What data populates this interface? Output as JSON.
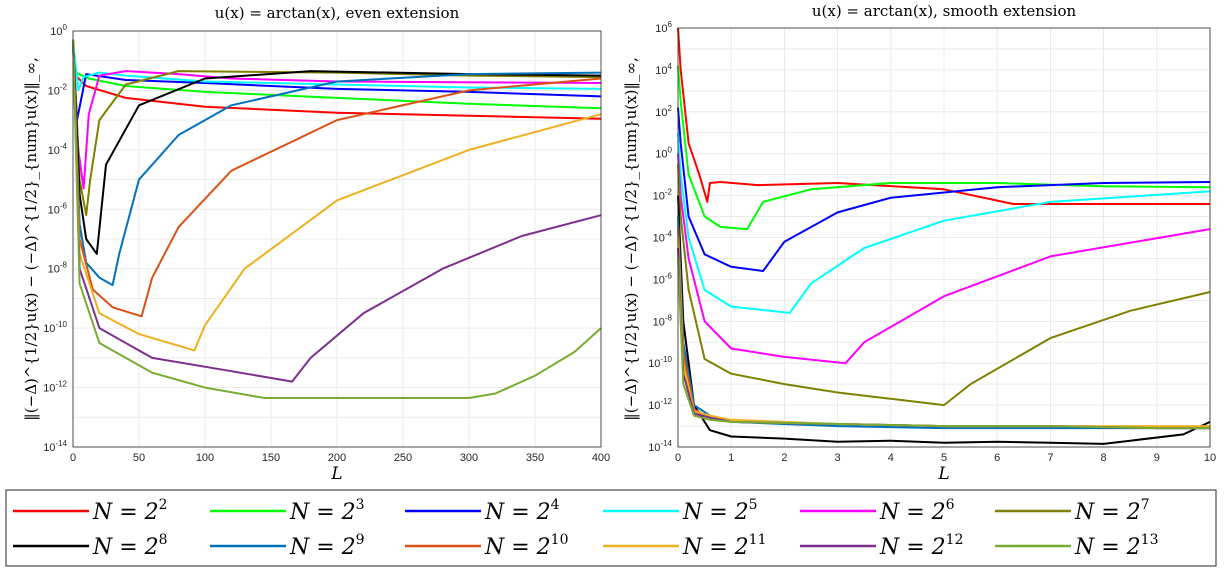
{
  "legend": {
    "entries": [
      {
        "label": "N = 2",
        "exp": "2",
        "color": "#ff0000"
      },
      {
        "label": "N = 2",
        "exp": "3",
        "color": "#00ff00"
      },
      {
        "label": "N = 2",
        "exp": "4",
        "color": "#0000ff"
      },
      {
        "label": "N = 2",
        "exp": "5",
        "color": "#00ffff"
      },
      {
        "label": "N = 2",
        "exp": "6",
        "color": "#ff00ff"
      },
      {
        "label": "N = 2",
        "exp": "7",
        "color": "#808000"
      },
      {
        "label": "N = 2",
        "exp": "8",
        "color": "#000000"
      },
      {
        "label": "N = 2",
        "exp": "9",
        "color": "#0072bd"
      },
      {
        "label": "N = 2",
        "exp": "10",
        "color": "#d95319"
      },
      {
        "label": "N = 2",
        "exp": "11",
        "color": "#edb120"
      },
      {
        "label": "N = 2",
        "exp": "12",
        "color": "#7e2f8e"
      },
      {
        "label": "N = 2",
        "exp": "13",
        "color": "#77ac30"
      }
    ]
  },
  "chart_data": [
    {
      "type": "line",
      "title": "u(x) = arctan(x), even extension",
      "xlabel": "L",
      "ylabel": "‖(−Δ)^{1/2}u(x) − (−Δ)^{1/2}_{num}u(x)‖_∞,",
      "xlim": [
        0,
        400
      ],
      "ylim_log10": [
        -14,
        0
      ],
      "yscale": "log",
      "grid": true,
      "xticks": [
        "0",
        "50",
        "100",
        "150",
        "200",
        "250",
        "300",
        "350",
        "400"
      ],
      "yticks": [
        "10^-14",
        "10^-12",
        "10^-10",
        "10^-8",
        "10^-6",
        "10^-4",
        "10^-2",
        "10^0"
      ],
      "series": [
        {
          "name": "N = 2^2",
          "x": [
            0,
            2,
            10,
            40,
            100,
            200,
            300,
            400
          ],
          "log10y": [
            -0.3,
            -1.5,
            -1.85,
            -2.25,
            -2.55,
            -2.75,
            -2.85,
            -2.95
          ]
        },
        {
          "name": "N = 2^3",
          "x": [
            0,
            2,
            12,
            40,
            100,
            200,
            300,
            400
          ],
          "log10y": [
            -0.3,
            -1.4,
            -1.6,
            -1.85,
            -2.05,
            -2.25,
            -2.45,
            -2.6
          ]
        },
        {
          "name": "N = 2^4",
          "x": [
            0,
            3,
            10,
            40,
            100,
            200,
            300,
            400
          ],
          "log10y": [
            -0.5,
            -3.0,
            -1.45,
            -1.65,
            -1.75,
            -1.95,
            -2.05,
            -2.2
          ]
        },
        {
          "name": "N = 2^5",
          "x": [
            0,
            4,
            8,
            20,
            40,
            100,
            200,
            300,
            400
          ],
          "log10y": [
            -0.3,
            -2.0,
            -1.55,
            -1.4,
            -1.5,
            -1.7,
            -1.8,
            -1.9,
            -1.95
          ]
        },
        {
          "name": "N = 2^6",
          "x": [
            0,
            4,
            8,
            12,
            20,
            40,
            80,
            120,
            200,
            400
          ],
          "log10y": [
            -0.3,
            -4.0,
            -5.3,
            -2.8,
            -1.5,
            -1.35,
            -1.45,
            -1.6,
            -1.7,
            -1.75
          ]
        },
        {
          "name": "N = 2^7",
          "x": [
            0,
            5,
            10,
            13,
            20,
            40,
            80,
            200,
            300,
            400
          ],
          "log10y": [
            -0.3,
            -5.0,
            -6.2,
            -5.0,
            -3.0,
            -1.8,
            -1.35,
            -1.4,
            -1.5,
            -1.55
          ]
        },
        {
          "name": "N = 2^8",
          "x": [
            0,
            5,
            10,
            18,
            25,
            50,
            100,
            180,
            300,
            400
          ],
          "log10y": [
            -0.3,
            -5.5,
            -7.0,
            -7.5,
            -4.5,
            -2.5,
            -1.6,
            -1.35,
            -1.45,
            -1.5
          ]
        },
        {
          "name": "N = 2^9",
          "x": [
            0,
            5,
            10,
            20,
            30,
            35,
            50,
            80,
            120,
            200,
            300,
            400
          ],
          "log10y": [
            -0.3,
            -6.5,
            -7.8,
            -8.3,
            -8.55,
            -7.5,
            -5.0,
            -3.5,
            -2.5,
            -1.7,
            -1.45,
            -1.4
          ]
        },
        {
          "name": "N = 2^10",
          "x": [
            0,
            5,
            15,
            30,
            52,
            60,
            80,
            120,
            200,
            300,
            400
          ],
          "log10y": [
            -0.3,
            -7.0,
            -8.7,
            -9.3,
            -9.6,
            -8.3,
            -6.6,
            -4.7,
            -3.0,
            -2.0,
            -1.6
          ]
        },
        {
          "name": "N = 2^11",
          "x": [
            0,
            5,
            20,
            50,
            92,
            100,
            130,
            200,
            300,
            400
          ],
          "log10y": [
            -0.3,
            -7.5,
            -9.5,
            -10.2,
            -10.75,
            -9.9,
            -8.0,
            -5.7,
            -4.0,
            -2.8
          ]
        },
        {
          "name": "N = 2^12",
          "x": [
            0,
            5,
            20,
            60,
            120,
            166,
            180,
            220,
            280,
            340,
            400
          ],
          "log10y": [
            -0.3,
            -8.0,
            -10.0,
            -11.0,
            -11.45,
            -11.8,
            -11.0,
            -9.5,
            -8.0,
            -6.9,
            -6.2
          ]
        },
        {
          "name": "N = 2^13",
          "x": [
            0,
            5,
            20,
            60,
            100,
            145,
            200,
            250,
            300,
            320,
            350,
            380,
            400
          ],
          "log10y": [
            -0.3,
            -8.5,
            -10.5,
            -11.5,
            -12.0,
            -12.35,
            -12.35,
            -12.35,
            -12.35,
            -12.2,
            -11.6,
            -10.8,
            -10.0
          ]
        }
      ]
    },
    {
      "type": "line",
      "title": "u(x) = arctan(x), smooth extension",
      "xlabel": "L",
      "ylabel": "‖(−Δ)^{1/2}u(x) − (−Δ)^{1/2}_{num}u(x)‖_∞,",
      "xlim": [
        0,
        10
      ],
      "ylim_log10": [
        -14,
        6
      ],
      "yscale": "log",
      "grid": true,
      "xticks": [
        "0",
        "1",
        "2",
        "3",
        "4",
        "5",
        "6",
        "7",
        "8",
        "9",
        "10"
      ],
      "yticks": [
        "10^-14",
        "10^-12",
        "10^-10",
        "10^-8",
        "10^-6",
        "10^-4",
        "10^-2",
        "10^0",
        "10^2",
        "10^4",
        "10^6"
      ],
      "series": [
        {
          "name": "N = 2^2",
          "x": [
            0,
            0.05,
            0.2,
            0.4,
            0.55,
            0.6,
            0.8,
            1.5,
            3,
            5,
            6.3,
            7,
            8,
            10
          ],
          "log10y": [
            6,
            4.0,
            0.5,
            -1.0,
            -2.3,
            -1.4,
            -1.35,
            -1.5,
            -1.4,
            -1.7,
            -2.4,
            -2.4,
            -2.4,
            -2.4
          ]
        },
        {
          "name": "N = 2^3",
          "x": [
            0,
            0.05,
            0.2,
            0.5,
            0.8,
            1.3,
            1.6,
            2.5,
            4,
            6,
            8,
            10
          ],
          "log10y": [
            4.2,
            2.5,
            -1.0,
            -3.0,
            -3.5,
            -3.6,
            -2.3,
            -1.7,
            -1.4,
            -1.4,
            -1.55,
            -1.6
          ]
        },
        {
          "name": "N = 2^4",
          "x": [
            0,
            0.05,
            0.2,
            0.5,
            1.0,
            1.6,
            2.0,
            3,
            4,
            6,
            8,
            10
          ],
          "log10y": [
            2.2,
            0.5,
            -3.0,
            -4.8,
            -5.4,
            -5.6,
            -4.2,
            -2.8,
            -2.1,
            -1.6,
            -1.4,
            -1.35
          ]
        },
        {
          "name": "N = 2^5",
          "x": [
            0,
            0.05,
            0.2,
            0.5,
            1.0,
            2.1,
            2.5,
            3.5,
            5,
            7,
            10
          ],
          "log10y": [
            1.0,
            -1.0,
            -4.0,
            -6.5,
            -7.3,
            -7.6,
            -6.2,
            -4.5,
            -3.2,
            -2.3,
            -1.8
          ]
        },
        {
          "name": "N = 2^6",
          "x": [
            0,
            0.05,
            0.2,
            0.5,
            1.0,
            2.0,
            3.15,
            3.5,
            5,
            7,
            10
          ],
          "log10y": [
            0,
            -2.0,
            -5.0,
            -8.0,
            -9.3,
            -9.7,
            -10.0,
            -9.0,
            -6.8,
            -4.9,
            -3.6
          ]
        },
        {
          "name": "N = 2^7",
          "x": [
            0,
            0.05,
            0.2,
            0.5,
            1.0,
            2.0,
            3.0,
            4.0,
            5.0,
            5.5,
            7,
            8.5,
            10
          ],
          "log10y": [
            -0.5,
            -3.0,
            -6.5,
            -9.8,
            -10.5,
            -11.0,
            -11.4,
            -11.7,
            -12.0,
            -11.0,
            -8.8,
            -7.5,
            -6.6
          ]
        },
        {
          "name": "N = 2^8",
          "x": [
            0,
            0.1,
            0.3,
            0.6,
            1.0,
            2,
            3,
            4,
            5,
            6,
            7,
            8,
            8.5,
            9.5,
            10
          ],
          "log10y": [
            -2.0,
            -8.0,
            -12.0,
            -13.2,
            -13.5,
            -13.6,
            -13.75,
            -13.7,
            -13.8,
            -13.75,
            -13.8,
            -13.85,
            -13.7,
            -13.4,
            -12.8
          ]
        },
        {
          "name": "N = 2^9",
          "x": [
            0,
            0.1,
            0.3,
            0.6,
            1,
            3,
            5,
            7,
            9,
            10
          ],
          "log10y": [
            -3.0,
            -9.0,
            -12.0,
            -12.5,
            -12.8,
            -13.0,
            -13.1,
            -13.1,
            -13.1,
            -13.1
          ]
        },
        {
          "name": "N = 2^10",
          "x": [
            0,
            0.1,
            0.3,
            0.6,
            1,
            3,
            5,
            7,
            9,
            10
          ],
          "log10y": [
            -3.5,
            -9.5,
            -12.2,
            -12.6,
            -12.8,
            -12.9,
            -13.0,
            -13.0,
            -13.1,
            -13.1
          ]
        },
        {
          "name": "N = 2^11",
          "x": [
            0,
            0.1,
            0.3,
            0.6,
            1,
            3,
            5,
            7,
            9,
            10
          ],
          "log10y": [
            -4.0,
            -10.0,
            -12.3,
            -12.5,
            -12.7,
            -12.9,
            -13.0,
            -13.0,
            -13.0,
            -13.0
          ]
        },
        {
          "name": "N = 2^12",
          "x": [
            0,
            0.1,
            0.3,
            0.6,
            1,
            3,
            5,
            7,
            9,
            10
          ],
          "log10y": [
            -4.5,
            -10.5,
            -12.4,
            -12.6,
            -12.8,
            -12.9,
            -13.0,
            -13.0,
            -13.1,
            -13.1
          ]
        },
        {
          "name": "N = 2^13",
          "x": [
            0,
            0.1,
            0.3,
            0.6,
            1,
            3,
            5,
            7,
            9,
            10
          ],
          "log10y": [
            -5.0,
            -11.0,
            -12.5,
            -12.7,
            -12.8,
            -12.9,
            -13.0,
            -13.0,
            -13.1,
            -13.1
          ]
        }
      ]
    }
  ]
}
